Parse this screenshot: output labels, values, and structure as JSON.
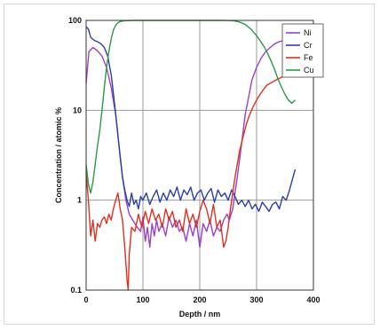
{
  "chart_data": {
    "type": "line",
    "title": "",
    "xlabel": "Depth / nm",
    "ylabel": "Concentration / atomic %",
    "xlim": [
      0,
      400
    ],
    "ylim": [
      0.1,
      100
    ],
    "yscale": "log",
    "grid": true,
    "legend_position": "top-right",
    "x_ticks": [
      "0",
      "100",
      "200",
      "300",
      "400"
    ],
    "y_ticks": [
      "0.1",
      "1",
      "10",
      "100"
    ],
    "series": [
      {
        "name": "Ni",
        "color": "#9b3fc9",
        "points": [
          [
            0,
            20
          ],
          [
            5,
            45
          ],
          [
            12,
            50
          ],
          [
            20,
            46
          ],
          [
            28,
            40
          ],
          [
            36,
            30
          ],
          [
            44,
            18
          ],
          [
            52,
            9
          ],
          [
            58,
            4
          ],
          [
            64,
            1.8
          ],
          [
            70,
            1.0
          ],
          [
            76,
            0.7
          ],
          [
            82,
            0.6
          ],
          [
            90,
            0.5
          ],
          [
            96,
            0.45
          ],
          [
            100,
            0.65
          ],
          [
            104,
            0.35
          ],
          [
            108,
            0.5
          ],
          [
            112,
            0.3
          ],
          [
            116,
            0.55
          ],
          [
            120,
            0.4
          ],
          [
            124,
            0.6
          ],
          [
            128,
            0.45
          ],
          [
            134,
            0.55
          ],
          [
            140,
            0.4
          ],
          [
            146,
            0.65
          ],
          [
            152,
            0.5
          ],
          [
            158,
            0.6
          ],
          [
            164,
            0.45
          ],
          [
            170,
            0.5
          ],
          [
            176,
            0.35
          ],
          [
            182,
            0.55
          ],
          [
            188,
            0.4
          ],
          [
            194,
            0.6
          ],
          [
            200,
            0.3
          ],
          [
            206,
            0.55
          ],
          [
            212,
            0.45
          ],
          [
            218,
            0.6
          ],
          [
            224,
            0.4
          ],
          [
            230,
            0.5
          ],
          [
            236,
            0.45
          ],
          [
            242,
            0.6
          ],
          [
            248,
            0.7
          ],
          [
            252,
            0.6
          ],
          [
            258,
            0.8
          ],
          [
            262,
            1.2
          ],
          [
            266,
            1.8
          ],
          [
            270,
            2.8
          ],
          [
            275,
            5
          ],
          [
            280,
            9
          ],
          [
            286,
            14
          ],
          [
            292,
            22
          ],
          [
            300,
            30
          ],
          [
            308,
            38
          ],
          [
            316,
            45
          ],
          [
            324,
            50
          ],
          [
            332,
            55
          ],
          [
            340,
            58
          ],
          [
            348,
            60
          ],
          [
            356,
            60
          ],
          [
            364,
            57
          ],
          [
            368,
            55
          ]
        ]
      },
      {
        "name": "Cr",
        "color": "#2b3fa8",
        "points": [
          [
            0,
            85
          ],
          [
            4,
            80
          ],
          [
            8,
            65
          ],
          [
            14,
            60
          ],
          [
            20,
            58
          ],
          [
            26,
            55
          ],
          [
            32,
            50
          ],
          [
            38,
            40
          ],
          [
            44,
            25
          ],
          [
            50,
            12
          ],
          [
            55,
            6
          ],
          [
            60,
            3
          ],
          [
            64,
            1.8
          ],
          [
            68,
            1.3
          ],
          [
            72,
            1.0
          ],
          [
            76,
            0.85
          ],
          [
            80,
            1.2
          ],
          [
            84,
            0.9
          ],
          [
            88,
            1.0
          ],
          [
            92,
            0.8
          ],
          [
            96,
            1.1
          ],
          [
            100,
            1.0
          ],
          [
            106,
            1.2
          ],
          [
            112,
            0.9
          ],
          [
            118,
            1.1
          ],
          [
            124,
            1.3
          ],
          [
            130,
            0.95
          ],
          [
            136,
            1.2
          ],
          [
            142,
            1.0
          ],
          [
            148,
            1.3
          ],
          [
            154,
            1.1
          ],
          [
            160,
            1.4
          ],
          [
            166,
            1.0
          ],
          [
            172,
            1.3
          ],
          [
            178,
            1.15
          ],
          [
            184,
            1.4
          ],
          [
            190,
            1.0
          ],
          [
            196,
            1.2
          ],
          [
            202,
            1.3
          ],
          [
            208,
            1.0
          ],
          [
            214,
            1.2
          ],
          [
            220,
            1.35
          ],
          [
            226,
            0.95
          ],
          [
            232,
            1.3
          ],
          [
            238,
            1.1
          ],
          [
            244,
            1.2
          ],
          [
            250,
            1.0
          ],
          [
            256,
            1.3
          ],
          [
            262,
            1.1
          ],
          [
            268,
            0.9
          ],
          [
            274,
            1.0
          ],
          [
            280,
            0.85
          ],
          [
            286,
            1.0
          ],
          [
            292,
            0.8
          ],
          [
            298,
            0.9
          ],
          [
            304,
            0.75
          ],
          [
            310,
            0.95
          ],
          [
            316,
            0.85
          ],
          [
            322,
            0.75
          ],
          [
            328,
            0.9
          ],
          [
            334,
            0.95
          ],
          [
            340,
            0.8
          ],
          [
            346,
            1.1
          ],
          [
            352,
            1.0
          ],
          [
            358,
            1.3
          ],
          [
            364,
            1.8
          ],
          [
            368,
            2.2
          ]
        ]
      },
      {
        "name": "Fe",
        "color": "#e0301e",
        "points": [
          [
            0,
            2.0
          ],
          [
            4,
            1.0
          ],
          [
            8,
            0.4
          ],
          [
            12,
            0.6
          ],
          [
            16,
            0.35
          ],
          [
            20,
            0.55
          ],
          [
            24,
            0.5
          ],
          [
            28,
            0.6
          ],
          [
            32,
            0.65
          ],
          [
            36,
            0.55
          ],
          [
            40,
            0.7
          ],
          [
            44,
            0.6
          ],
          [
            48,
            0.8
          ],
          [
            52,
            1.0
          ],
          [
            56,
            1.2
          ],
          [
            60,
            0.8
          ],
          [
            64,
            0.6
          ],
          [
            68,
            0.3
          ],
          [
            72,
            0.13
          ],
          [
            74,
            0.1
          ],
          [
            76,
            0.25
          ],
          [
            80,
            0.5
          ],
          [
            86,
            0.45
          ],
          [
            92,
            0.7
          ],
          [
            98,
            0.5
          ],
          [
            104,
            0.75
          ],
          [
            110,
            0.55
          ],
          [
            116,
            0.8
          ],
          [
            122,
            0.6
          ],
          [
            128,
            0.7
          ],
          [
            134,
            0.5
          ],
          [
            140,
            0.8
          ],
          [
            146,
            0.6
          ],
          [
            152,
            0.75
          ],
          [
            158,
            0.5
          ],
          [
            164,
            0.6
          ],
          [
            170,
            0.45
          ],
          [
            176,
            0.8
          ],
          [
            182,
            0.55
          ],
          [
            188,
            0.7
          ],
          [
            194,
            0.5
          ],
          [
            200,
            0.75
          ],
          [
            206,
            1.0
          ],
          [
            212,
            0.8
          ],
          [
            218,
            0.55
          ],
          [
            224,
            0.9
          ],
          [
            230,
            0.5
          ],
          [
            236,
            0.6
          ],
          [
            242,
            0.3
          ],
          [
            246,
            0.35
          ],
          [
            250,
            0.5
          ],
          [
            254,
            0.8
          ],
          [
            258,
            1.2
          ],
          [
            262,
            1.8
          ],
          [
            266,
            2.5
          ],
          [
            270,
            3.5
          ],
          [
            276,
            5
          ],
          [
            282,
            7
          ],
          [
            288,
            9
          ],
          [
            294,
            11
          ],
          [
            300,
            13
          ],
          [
            306,
            15
          ],
          [
            312,
            17
          ],
          [
            318,
            19
          ],
          [
            324,
            20
          ],
          [
            330,
            21
          ],
          [
            336,
            22
          ],
          [
            342,
            23
          ],
          [
            348,
            24
          ],
          [
            356,
            25
          ],
          [
            362,
            26
          ],
          [
            368,
            27
          ]
        ]
      },
      {
        "name": "Cu",
        "color": "#2a9a46",
        "points": [
          [
            0,
            2.5
          ],
          [
            4,
            1.5
          ],
          [
            8,
            1.2
          ],
          [
            12,
            1.6
          ],
          [
            16,
            2.5
          ],
          [
            20,
            4
          ],
          [
            24,
            6
          ],
          [
            28,
            10
          ],
          [
            32,
            18
          ],
          [
            36,
            30
          ],
          [
            40,
            45
          ],
          [
            44,
            62
          ],
          [
            48,
            78
          ],
          [
            52,
            88
          ],
          [
            56,
            94
          ],
          [
            60,
            97
          ],
          [
            66,
            99
          ],
          [
            80,
            100
          ],
          [
            120,
            100
          ],
          [
            200,
            100
          ],
          [
            240,
            100
          ],
          [
            260,
            99
          ],
          [
            270,
            96
          ],
          [
            280,
            90
          ],
          [
            290,
            80
          ],
          [
            298,
            70
          ],
          [
            306,
            60
          ],
          [
            314,
            50
          ],
          [
            320,
            42
          ],
          [
            326,
            35
          ],
          [
            332,
            28
          ],
          [
            338,
            22
          ],
          [
            344,
            18
          ],
          [
            350,
            15
          ],
          [
            356,
            13
          ],
          [
            362,
            12
          ],
          [
            368,
            13
          ]
        ]
      }
    ]
  }
}
